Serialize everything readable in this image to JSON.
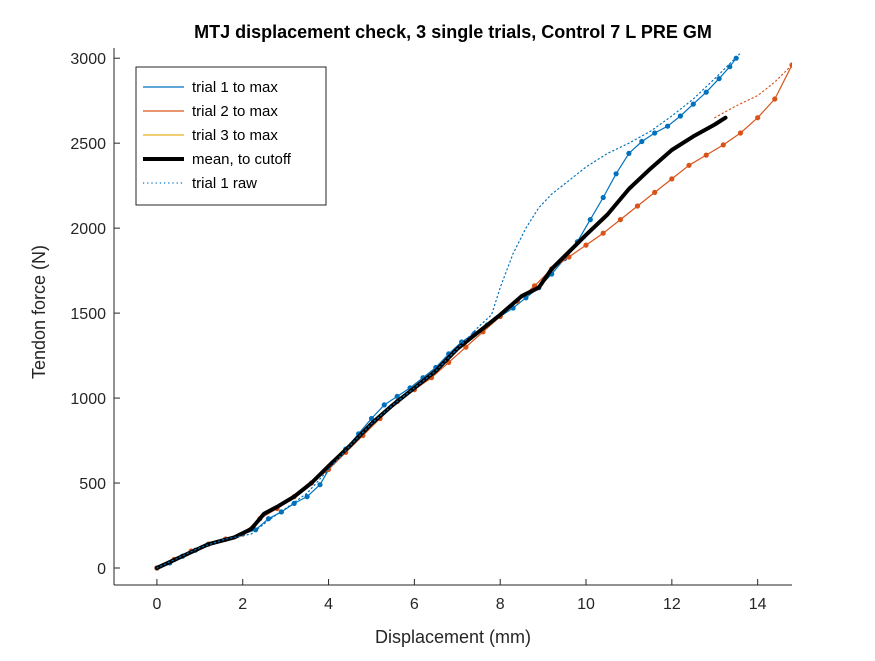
{
  "chart_data": {
    "type": "line",
    "title": "MTJ displacement check, 3 single trials, Control 7 L PRE GM",
    "xlabel": "Displacement (mm)",
    "ylabel": "Tendon force (N)",
    "xlim": [
      -1,
      14.8
    ],
    "ylim": [
      -100,
      3060
    ],
    "xticks": [
      0,
      2,
      4,
      6,
      8,
      10,
      12,
      14
    ],
    "yticks": [
      0,
      500,
      1000,
      1500,
      2000,
      2500,
      3000
    ],
    "grid": false,
    "legend_position": "top-left",
    "series": [
      {
        "name": "trial 1 to max",
        "color": "#0072BD",
        "style": "solid",
        "markers": true,
        "x": [
          0,
          0.3,
          0.6,
          0.9,
          1.2,
          1.6,
          2.0,
          2.3,
          2.6,
          2.9,
          3.2,
          3.5,
          3.8,
          4.1,
          4.4,
          4.7,
          5.0,
          5.3,
          5.6,
          5.9,
          6.2,
          6.5,
          6.8,
          7.1,
          7.4,
          7.7,
          8.0,
          8.3,
          8.6,
          8.9,
          9.2,
          9.5,
          9.8,
          10.1,
          10.4,
          10.7,
          11.0,
          11.3,
          11.6,
          11.9,
          12.2,
          12.5,
          12.8,
          13.1,
          13.35,
          13.5
        ],
        "y": [
          0,
          30,
          70,
          105,
          140,
          170,
          200,
          225,
          290,
          330,
          380,
          420,
          490,
          620,
          700,
          790,
          880,
          960,
          1010,
          1060,
          1120,
          1180,
          1260,
          1330,
          1380,
          1430,
          1480,
          1530,
          1590,
          1650,
          1730,
          1820,
          1920,
          2050,
          2180,
          2320,
          2440,
          2510,
          2560,
          2600,
          2660,
          2730,
          2800,
          2880,
          2950,
          3000
        ]
      },
      {
        "name": "trial 2 to max",
        "color": "#D95319",
        "style": "solid",
        "markers": true,
        "x": [
          0,
          0.4,
          0.8,
          1.2,
          1.6,
          2.0,
          2.4,
          2.8,
          3.2,
          3.6,
          4.0,
          4.4,
          4.8,
          5.2,
          5.6,
          6.0,
          6.4,
          6.8,
          7.2,
          7.6,
          8.0,
          8.4,
          8.8,
          9.2,
          9.6,
          10.0,
          10.4,
          10.8,
          11.2,
          11.6,
          12.0,
          12.4,
          12.8,
          13.2,
          13.6,
          14.0,
          14.4,
          14.8
        ],
        "y": [
          0,
          50,
          100,
          140,
          170,
          200,
          290,
          350,
          420,
          500,
          580,
          680,
          780,
          880,
          980,
          1050,
          1120,
          1210,
          1300,
          1390,
          1480,
          1570,
          1660,
          1760,
          1830,
          1900,
          1970,
          2050,
          2130,
          2210,
          2290,
          2370,
          2430,
          2490,
          2560,
          2650,
          2760,
          2960
        ]
      },
      {
        "name": "trial 3 to max",
        "color": "#EDB120",
        "style": "solid",
        "markers": false,
        "x": [],
        "y": []
      },
      {
        "name": "mean, to cutoff",
        "color": "#000000",
        "style": "solid",
        "markers": false,
        "x": [
          0,
          0.6,
          1.2,
          1.8,
          2.2,
          2.5,
          2.8,
          3.2,
          3.6,
          4.0,
          4.5,
          5.0,
          5.5,
          6.0,
          6.5,
          7.0,
          7.5,
          8.0,
          8.5,
          8.9,
          9.2,
          9.6,
          10.0,
          10.5,
          11.0,
          11.5,
          12.0,
          12.5,
          13.0,
          13.25
        ],
        "y": [
          0,
          70,
          140,
          180,
          230,
          320,
          360,
          420,
          500,
          600,
          720,
          850,
          960,
          1060,
          1160,
          1290,
          1390,
          1490,
          1600,
          1650,
          1760,
          1860,
          1960,
          2080,
          2230,
          2350,
          2460,
          2540,
          2610,
          2650
        ]
      },
      {
        "name": "trial 1 raw",
        "color": "#0072BD",
        "style": "dotted",
        "markers": false,
        "x": [
          0,
          0.5,
          1.0,
          1.6,
          2.2,
          2.6,
          3.0,
          3.5,
          4.0,
          4.5,
          5.0,
          5.5,
          6.0,
          6.5,
          7.0,
          7.5,
          7.8,
          8.0,
          8.3,
          8.6,
          8.9,
          9.2,
          9.6,
          10.0,
          10.5,
          11.0,
          11.5,
          12.0,
          12.5,
          13.0,
          13.4,
          13.6
        ],
        "y": [
          0,
          60,
          120,
          170,
          200,
          280,
          350,
          440,
          580,
          720,
          850,
          960,
          1060,
          1160,
          1290,
          1420,
          1490,
          1650,
          1850,
          2000,
          2120,
          2200,
          2280,
          2360,
          2440,
          2500,
          2570,
          2660,
          2760,
          2880,
          2980,
          3030
        ]
      },
      {
        "name": "",
        "color": "#D95319",
        "style": "dotted",
        "markers": false,
        "x": [
          13.0,
          13.5,
          14.0,
          14.4,
          14.8
        ],
        "y": [
          2650,
          2720,
          2780,
          2860,
          2960
        ]
      }
    ]
  }
}
